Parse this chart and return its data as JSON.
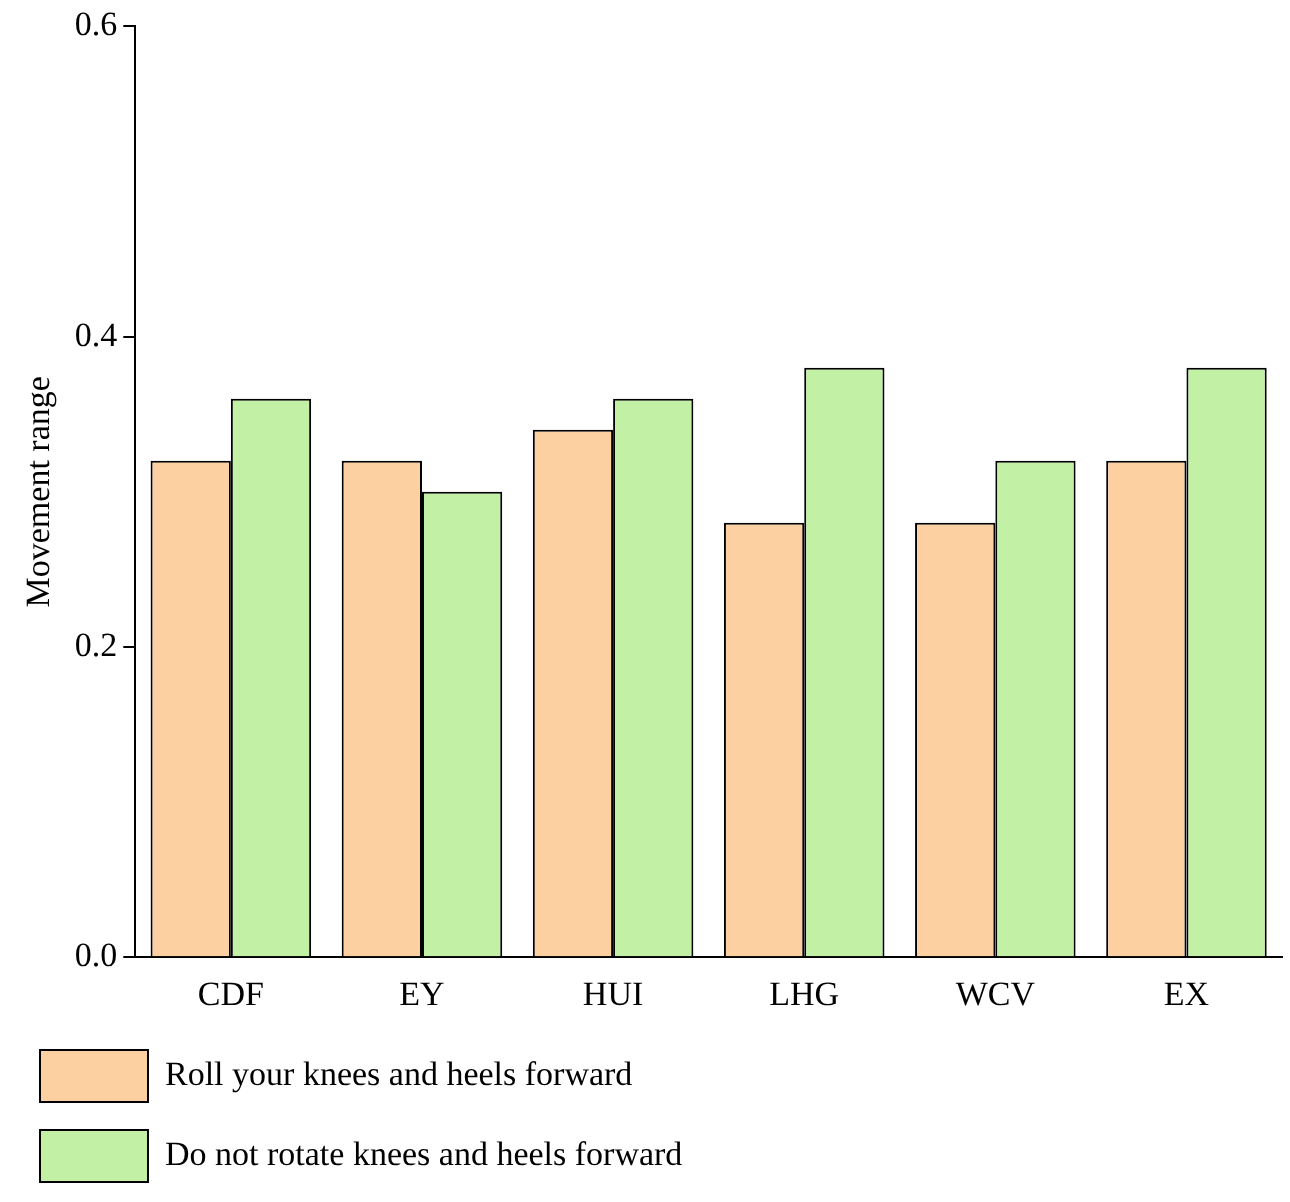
{
  "chart_data": {
    "type": "bar",
    "ylabel": "Movement range",
    "categories": [
      "CDF",
      "EY",
      "HUI",
      "LHG",
      "WCV",
      "EX"
    ],
    "series": [
      {
        "name": "Roll your knees and heels forward",
        "color": "#fdd0a2",
        "values": [
          0.32,
          0.32,
          0.34,
          0.28,
          0.28,
          0.32
        ]
      },
      {
        "name": "Do not rotate knees and heels forward",
        "color": "#c2f0a4",
        "values": [
          0.36,
          0.3,
          0.36,
          0.38,
          0.32,
          0.38
        ]
      }
    ],
    "ylim": [
      0,
      0.6
    ],
    "yticks": [
      {
        "value": 0,
        "label": "0.0"
      },
      {
        "value": 0.2,
        "label": "0.2"
      },
      {
        "value": 0.4,
        "label": "0.4"
      },
      {
        "value": 0.6,
        "label": "0.6"
      }
    ],
    "grid": false,
    "legend": "bottom"
  }
}
